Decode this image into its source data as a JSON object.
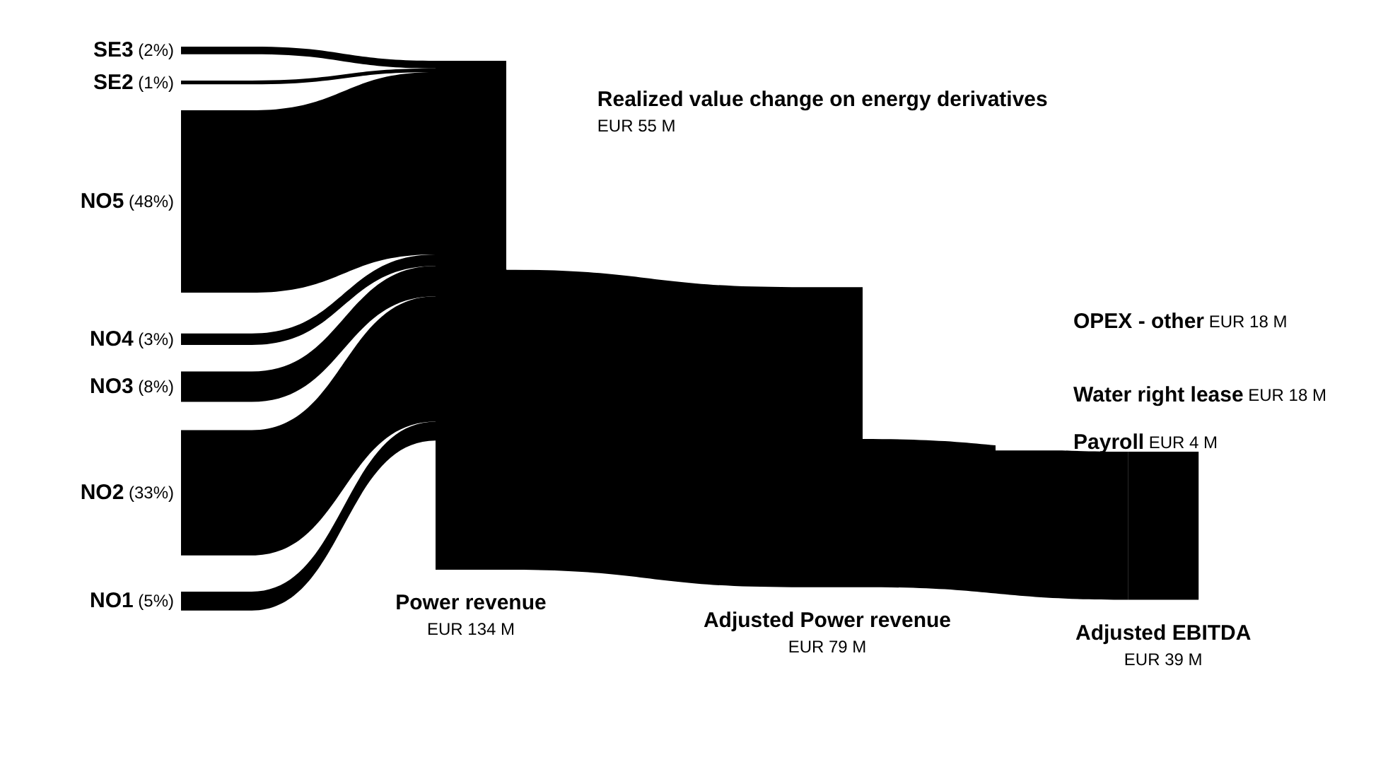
{
  "chart_data": {
    "type": "other",
    "categories": [
      "SE3",
      "SE2",
      "NO5",
      "NO4",
      "NO3",
      "NO2",
      "NO1",
      "Power revenue",
      "Realized value change on energy derivatives",
      "Adjusted Power revenue",
      "OPEX - other",
      "Water right lease",
      "Payroll",
      "Adjusted EBITDA"
    ],
    "values": [
      2,
      1,
      48,
      3,
      8,
      33,
      5,
      134,
      55,
      79,
      18,
      18,
      4,
      39
    ],
    "value_labels": [
      "(2%)",
      "(1%)",
      "(48%)",
      "(3%)",
      "(8%)",
      "(33%)",
      "(5%)",
      "EUR 134 M",
      "EUR 55 M",
      "EUR 79 M",
      "EUR 18 M",
      "EUR 18 M",
      "EUR 4 M",
      "EUR 39 M"
    ],
    "colors": [
      "#000000",
      "#000000",
      "#000000",
      "#000000",
      "#000000",
      "#000000",
      "#000000",
      "#000000",
      "#ffffff",
      "#000000",
      "#ffffff",
      "#ffffff",
      "#ffffff",
      "#000000"
    ]
  }
}
